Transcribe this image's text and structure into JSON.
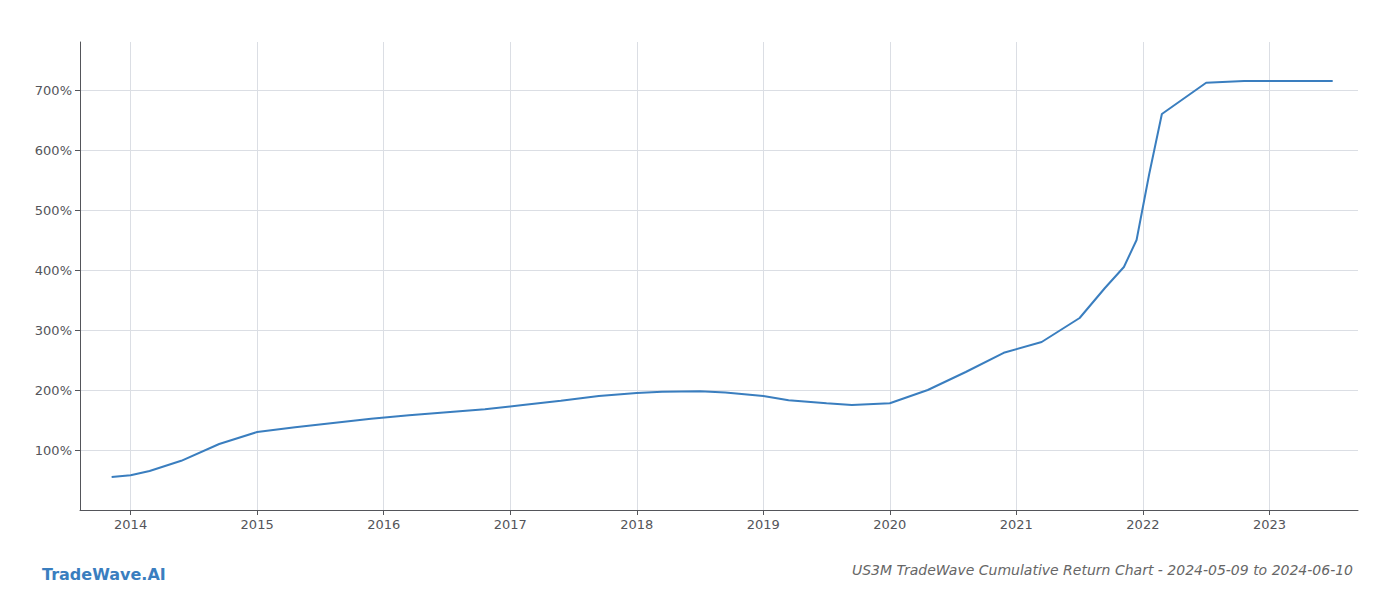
{
  "chart_data": {
    "type": "line",
    "title": "US3M TradeWave Cumulative Return Chart - 2024-05-09 to 2024-06-10",
    "annotations": [
      "TradeWave.AI"
    ],
    "x": [
      2013.85,
      2014.0,
      2014.15,
      2014.4,
      2014.7,
      2015.0,
      2015.3,
      2015.6,
      2015.9,
      2016.2,
      2016.5,
      2016.8,
      2017.1,
      2017.4,
      2017.7,
      2018.0,
      2018.2,
      2018.5,
      2018.7,
      2019.0,
      2019.2,
      2019.5,
      2019.7,
      2020.0,
      2020.3,
      2020.6,
      2020.9,
      2021.2,
      2021.5,
      2021.7,
      2021.85,
      2021.95,
      2022.05,
      2022.15,
      2022.5,
      2022.8,
      2023.0,
      2023.3,
      2023.5
    ],
    "values": [
      55,
      58,
      65,
      82,
      110,
      130,
      138,
      145,
      152,
      158,
      163,
      168,
      175,
      182,
      190,
      195,
      197,
      198,
      196,
      190,
      183,
      178,
      175,
      178,
      200,
      230,
      262,
      280,
      320,
      370,
      405,
      450,
      560,
      660,
      712,
      715,
      715,
      715,
      715
    ],
    "color": "#3a7ebf",
    "xlim": [
      2013.6,
      2023.7
    ],
    "xticks": [
      2014,
      2015,
      2016,
      2017,
      2018,
      2019,
      2020,
      2021,
      2022,
      2023
    ],
    "ylim": [
      0,
      780
    ],
    "yticks": [
      {
        "value": 100,
        "label": "100%"
      },
      {
        "value": 200,
        "label": "200%"
      },
      {
        "value": 300,
        "label": "300%"
      },
      {
        "value": 400,
        "label": "400%"
      },
      {
        "value": 500,
        "label": "500%"
      },
      {
        "value": 600,
        "label": "600%"
      },
      {
        "value": 700,
        "label": "700%"
      }
    ],
    "grid": true
  }
}
